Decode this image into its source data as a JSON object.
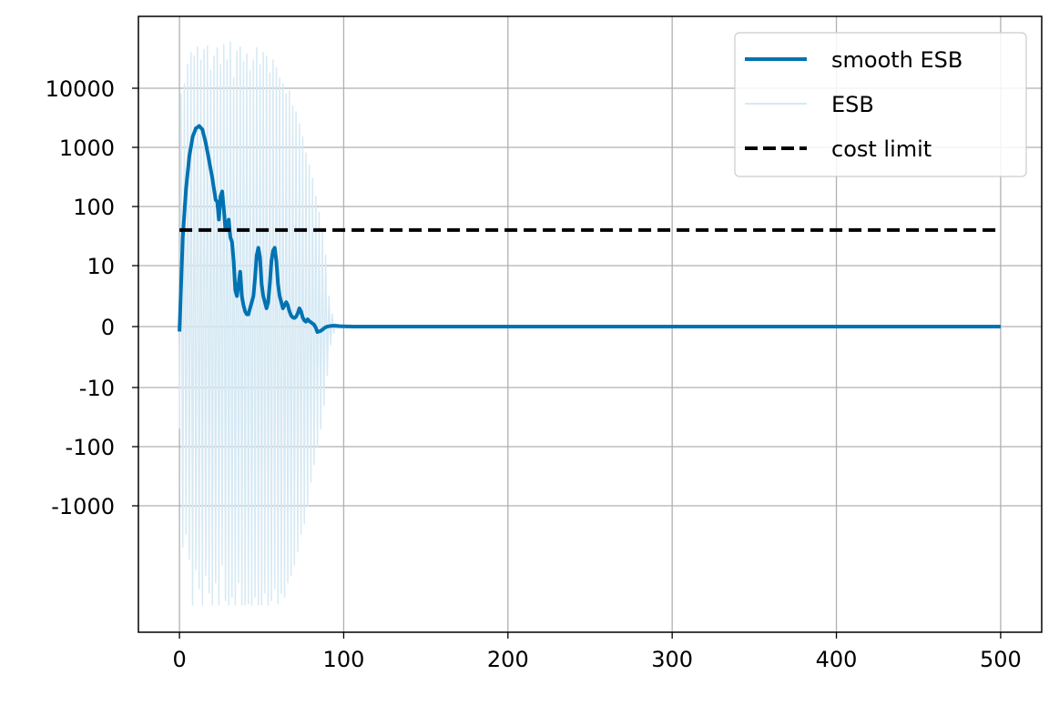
{
  "chart_data": {
    "type": "line",
    "title": "",
    "xlabel": "",
    "ylabel": "",
    "xlim": [
      -25,
      525
    ],
    "ylim": [
      -100000,
      1000000
    ],
    "y_scale": "symlog",
    "grid": true,
    "x_ticks": [
      0,
      100,
      200,
      300,
      400,
      500
    ],
    "x_tick_labels": [
      "0",
      "100",
      "200",
      "300",
      "400",
      "500"
    ],
    "y_ticks": [
      10000,
      1000,
      100,
      10,
      0,
      -10,
      -100,
      -1000
    ],
    "y_tick_labels": [
      "10000",
      "1000",
      "100",
      "10",
      "0",
      "-10",
      "-100",
      "-1000"
    ],
    "legend": {
      "placement": "top-right",
      "entries": [
        "smooth ESB",
        "ESB",
        "cost limit"
      ]
    },
    "series": [
      {
        "name": "smooth ESB",
        "color": "#0072b2",
        "style": "solid",
        "x": [
          0,
          2,
          4,
          6,
          8,
          10,
          12,
          14,
          16,
          18,
          20,
          22,
          23,
          24,
          25,
          26,
          27,
          28,
          30,
          31,
          32,
          33,
          34,
          35,
          36,
          37,
          38,
          39,
          40,
          41,
          42,
          43,
          44,
          45,
          46,
          47,
          48,
          49,
          50,
          51,
          52,
          53,
          54,
          55,
          56,
          57,
          58,
          59,
          60,
          61,
          62,
          63,
          64,
          65,
          66,
          67,
          68,
          69,
          70,
          71,
          72,
          73,
          74,
          75,
          76,
          77,
          78,
          79,
          80,
          81,
          82,
          83,
          84,
          85,
          86,
          87,
          88,
          89,
          90,
          91,
          92,
          93,
          94,
          95,
          96,
          97,
          98,
          99,
          100,
          101,
          102,
          103,
          104,
          105,
          106,
          107,
          108,
          110,
          112,
          114,
          116,
          118,
          120,
          125,
          130,
          140,
          150,
          200,
          300,
          400,
          500
        ],
        "y": [
          -0.8,
          30,
          200,
          700,
          1500,
          2100,
          2300,
          2000,
          1200,
          600,
          300,
          130,
          120,
          60,
          150,
          180,
          90,
          40,
          60,
          30,
          25,
          12,
          6,
          5,
          7,
          9,
          5,
          3.5,
          2.5,
          2,
          2,
          3,
          4,
          5,
          8,
          15,
          20,
          14,
          7,
          5,
          4,
          3,
          4,
          7,
          12,
          18,
          20,
          12,
          7,
          5,
          4,
          3,
          3.5,
          4,
          3.5,
          2.5,
          1.8,
          1.5,
          1.4,
          1.6,
          2.2,
          3,
          2.5,
          1.5,
          1,
          0.8,
          1.2,
          0.9,
          0.7,
          0.5,
          0.3,
          -0.2,
          -0.9,
          -0.8,
          -0.7,
          -0.5,
          -0.3,
          -0.1,
          0,
          0.05,
          0.1,
          0.12,
          0.15,
          0.12,
          0.1,
          0.08,
          0.06,
          0.05,
          0.04,
          0.03,
          0.02,
          0.02,
          0.01,
          0,
          0,
          0,
          0,
          0,
          0,
          0,
          0,
          0,
          0,
          0,
          0,
          0,
          0,
          0,
          0,
          0,
          0
        ]
      },
      {
        "name": "ESB",
        "color": "#d6e9f4",
        "style": "solid",
        "x": [
          0,
          1,
          2,
          3,
          4,
          5,
          6,
          7,
          8,
          9,
          10,
          11,
          12,
          13,
          14,
          15,
          16,
          17,
          18,
          19,
          20,
          21,
          22,
          23,
          24,
          25,
          26,
          27,
          28,
          29,
          30,
          31,
          32,
          33,
          34,
          35,
          36,
          37,
          38,
          39,
          40,
          41,
          42,
          43,
          44,
          45,
          46,
          47,
          48,
          49,
          50,
          51,
          52,
          53,
          54,
          55,
          56,
          57,
          58,
          59,
          60,
          61,
          62,
          63,
          64,
          65,
          66,
          67,
          68,
          69,
          70,
          71,
          72,
          73,
          74,
          75,
          76,
          77,
          78,
          79,
          80,
          81,
          82,
          83,
          84,
          85,
          86,
          87,
          88,
          89,
          90,
          91,
          92,
          93,
          94,
          95,
          96,
          97,
          98,
          99,
          100,
          101,
          102,
          103,
          104,
          105,
          106,
          108,
          110,
          115,
          120,
          125,
          500
        ],
        "y": [
          -50,
          8000,
          -5000,
          12000,
          -3000,
          25000,
          -8000,
          40000,
          -60000,
          35000,
          -12000,
          50000,
          -25000,
          30000,
          -80000,
          45000,
          -15000,
          52000,
          -30000,
          20000,
          -60000,
          35000,
          -20000,
          48000,
          -70000,
          25000,
          -10000,
          55000,
          -40000,
          30000,
          -50000,
          60000,
          -35000,
          15000,
          -75000,
          42000,
          -20000,
          50000,
          -55000,
          28000,
          -65000,
          38000,
          -45000,
          20000,
          -80000,
          30000,
          -35000,
          48000,
          -60000,
          25000,
          -70000,
          40000,
          -30000,
          35000,
          -55000,
          18000,
          -40000,
          30000,
          -25000,
          22000,
          -45000,
          15000,
          -30000,
          12000,
          -35000,
          8000,
          -20000,
          9000,
          -15000,
          5000,
          -10000,
          4000,
          -6000,
          2500,
          -3000,
          1500,
          -2000,
          800,
          -1000,
          500,
          -400,
          300,
          -200,
          150,
          -100,
          80,
          -50,
          40,
          -20,
          15,
          -8,
          5,
          -3,
          2,
          -1,
          0.5,
          -0.3,
          0.2,
          -0.1,
          0.05,
          0,
          0,
          0,
          0,
          0,
          0,
          0,
          0,
          0,
          0,
          0,
          0,
          0
        ]
      },
      {
        "name": "cost limit",
        "color": "#000000",
        "style": "dashed",
        "x": [
          0,
          500
        ],
        "y": [
          40,
          40
        ]
      }
    ]
  }
}
